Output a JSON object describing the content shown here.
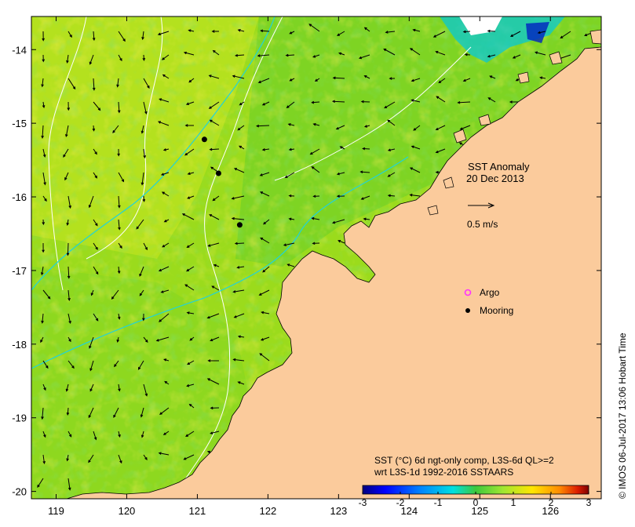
{
  "map": {
    "title_line1": "SST Anomaly",
    "date": "20 Dec 2013",
    "scale_label": "0.5 m/s",
    "legend": {
      "argo_label": "Argo",
      "mooring_label": "Mooring"
    },
    "colorbar_title_line1": "SST (°C) 6d ngt-only comp, L3S-6d QL>=2",
    "colorbar_title_line2": "wrt L3S-1d 1992-2016 SSTAARS",
    "credit": "©  IMOS 06-Jul-2017 13:06 Hobart Time",
    "colors": {
      "land": "#FBCB9C",
      "ocean_base": "#9BDB1C",
      "current_contour": "#22D3D8",
      "bathy_contour": "#ffffff",
      "argo_marker": "#FF33FF",
      "mooring_marker": "#000000"
    }
  },
  "chart_data": {
    "type": "heatmap",
    "x_ticks": [
      "119",
      "120",
      "121",
      "122",
      "123",
      "124",
      "125",
      "126"
    ],
    "y_ticks": [
      "-14",
      "-15",
      "-16",
      "-17",
      "-18",
      "-19",
      "-20"
    ],
    "xlim": [
      118.65,
      126.72
    ],
    "ylim": [
      -20.1,
      -13.55
    ],
    "colorbar": {
      "ticks": [
        "-3",
        "-2",
        "-1",
        "0",
        "1",
        "2",
        "3"
      ],
      "range": [
        -3,
        3
      ],
      "colors": [
        "#00007F",
        "#0000FF",
        "#0080FF",
        "#00E0E0",
        "#3CC83C",
        "#A0E632",
        "#FFE600",
        "#FF8C00",
        "#DC1E00",
        "#7F0000"
      ]
    },
    "moorings": [
      {
        "lon": 121.1,
        "lat": -15.22
      },
      {
        "lon": 121.3,
        "lat": -15.68
      },
      {
        "lon": 121.6,
        "lat": -16.38
      }
    ]
  }
}
